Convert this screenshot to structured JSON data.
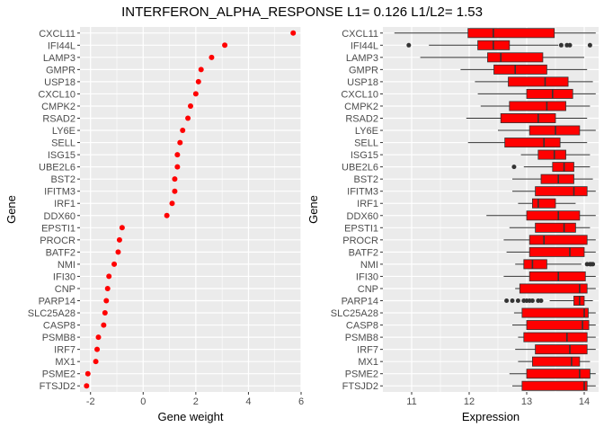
{
  "title": "INTERFERON_ALPHA_RESPONSE L1= 0.126 L1/L2= 1.53",
  "colors": {
    "panel": "#ebebeb",
    "grid": "#ffffff",
    "point": "#ff0000",
    "box": "#ff0000",
    "outlier": "#333333"
  },
  "chart_data": [
    {
      "type": "scatter",
      "xlabel": "Gene weight",
      "ylabel": "Gene",
      "xlim": [
        -2.4,
        6.0
      ],
      "xticks": [
        -2,
        0,
        2,
        4,
        6
      ],
      "genes": [
        "CXCL11",
        "IFI44L",
        "LAMP3",
        "GMPR",
        "USP18",
        "CXCL10",
        "CMPK2",
        "RSAD2",
        "LY6E",
        "SELL",
        "ISG15",
        "UBE2L6",
        "BST2",
        "IFITM3",
        "IRF1",
        "DDX60",
        "EPSTI1",
        "PROCR",
        "BATF2",
        "NMI",
        "IFI30",
        "CNP",
        "PARP14",
        "SLC25A28",
        "CASP8",
        "PSMB8",
        "IRF7",
        "MX1",
        "PSME2",
        "FTSJD2"
      ],
      "values": [
        5.7,
        3.1,
        2.6,
        2.2,
        2.1,
        2.0,
        1.8,
        1.7,
        1.5,
        1.4,
        1.3,
        1.3,
        1.2,
        1.2,
        1.1,
        0.9,
        -0.8,
        -0.9,
        -0.95,
        -1.1,
        -1.3,
        -1.35,
        -1.4,
        -1.45,
        -1.5,
        -1.7,
        -1.75,
        -1.8,
        -2.1,
        -2.15
      ]
    },
    {
      "type": "box",
      "xlabel": "Expression",
      "ylabel": "Gene",
      "xlim": [
        10.5,
        14.25
      ],
      "xticks": [
        11,
        12,
        13,
        14
      ],
      "genes": [
        "CXCL11",
        "IFI44L",
        "LAMP3",
        "GMPR",
        "USP18",
        "CXCL10",
        "CMPK2",
        "RSAD2",
        "LY6E",
        "SELL",
        "ISG15",
        "UBE2L6",
        "BST2",
        "IFITM3",
        "IRF1",
        "DDX60",
        "EPSTI1",
        "PROCR",
        "BATF2",
        "NMI",
        "IFI30",
        "CNP",
        "PARP14",
        "SLC25A28",
        "CASP8",
        "PSMB8",
        "IRF7",
        "MX1",
        "PSME2",
        "FTSJD2"
      ],
      "boxes": [
        {
          "wlo": 10.7,
          "q1": 11.98,
          "med": 12.42,
          "q3": 13.48,
          "whi": 14.2,
          "out": []
        },
        {
          "wlo": 11.3,
          "q1": 12.15,
          "med": 12.42,
          "q3": 12.7,
          "whi": 13.55,
          "out": [
            10.95,
            13.6,
            13.7,
            13.75,
            14.1
          ]
        },
        {
          "wlo": 11.15,
          "q1": 12.32,
          "med": 12.55,
          "q3": 13.28,
          "whi": 14.0,
          "out": []
        },
        {
          "wlo": 11.85,
          "q1": 12.43,
          "med": 12.8,
          "q3": 13.35,
          "whi": 14.05,
          "out": []
        },
        {
          "wlo": 12.1,
          "q1": 12.68,
          "med": 13.32,
          "q3": 13.72,
          "whi": 14.15,
          "out": []
        },
        {
          "wlo": 12.15,
          "q1": 13.0,
          "med": 13.45,
          "q3": 13.8,
          "whi": 14.2,
          "out": []
        },
        {
          "wlo": 12.2,
          "q1": 12.7,
          "med": 13.35,
          "q3": 13.68,
          "whi": 14.1,
          "out": []
        },
        {
          "wlo": 11.95,
          "q1": 12.55,
          "med": 13.2,
          "q3": 13.5,
          "whi": 14.05,
          "out": []
        },
        {
          "wlo": 12.5,
          "q1": 13.05,
          "med": 13.5,
          "q3": 13.92,
          "whi": 14.2,
          "out": []
        },
        {
          "wlo": 11.98,
          "q1": 12.62,
          "med": 13.3,
          "q3": 13.58,
          "whi": 14.05,
          "out": []
        },
        {
          "wlo": 12.9,
          "q1": 13.2,
          "med": 13.48,
          "q3": 13.68,
          "whi": 14.1,
          "out": []
        },
        {
          "wlo": 12.95,
          "q1": 13.45,
          "med": 13.65,
          "q3": 13.82,
          "whi": 14.1,
          "out": [
            12.78
          ]
        },
        {
          "wlo": 12.75,
          "q1": 13.25,
          "med": 13.55,
          "q3": 13.82,
          "whi": 14.15,
          "out": []
        },
        {
          "wlo": 12.75,
          "q1": 13.15,
          "med": 13.82,
          "q3": 14.05,
          "whi": 14.2,
          "out": []
        },
        {
          "wlo": 12.85,
          "q1": 13.1,
          "med": 13.2,
          "q3": 13.5,
          "whi": 13.85,
          "out": []
        },
        {
          "wlo": 12.3,
          "q1": 13.0,
          "med": 13.55,
          "q3": 13.92,
          "whi": 14.2,
          "out": []
        },
        {
          "wlo": 12.7,
          "q1": 13.15,
          "med": 13.65,
          "q3": 13.85,
          "whi": 14.1,
          "out": []
        },
        {
          "wlo": 12.6,
          "q1": 13.05,
          "med": 13.3,
          "q3": 14.05,
          "whi": 14.2,
          "out": []
        },
        {
          "wlo": 12.65,
          "q1": 13.05,
          "med": 13.75,
          "q3": 14.0,
          "whi": 14.2,
          "out": []
        },
        {
          "wlo": 12.8,
          "q1": 12.95,
          "med": 13.1,
          "q3": 13.35,
          "whi": 13.95,
          "out": [
            14.05,
            14.1,
            14.12,
            14.15
          ]
        },
        {
          "wlo": 12.6,
          "q1": 13.05,
          "med": 13.55,
          "q3": 14.02,
          "whi": 14.2,
          "out": []
        },
        {
          "wlo": 12.8,
          "q1": 12.88,
          "med": 13.92,
          "q3": 14.05,
          "whi": 14.2,
          "out": []
        },
        {
          "wlo": 13.4,
          "q1": 13.82,
          "med": 13.92,
          "q3": 14.0,
          "whi": 14.15,
          "out": [
            12.65,
            12.75,
            12.85,
            12.95,
            13.0,
            13.05,
            13.1,
            13.2,
            13.25
          ]
        },
        {
          "wlo": 12.78,
          "q1": 12.92,
          "med": 14.0,
          "q3": 14.07,
          "whi": 14.2,
          "out": []
        },
        {
          "wlo": 12.75,
          "q1": 13.0,
          "med": 13.97,
          "q3": 14.08,
          "whi": 14.2,
          "out": []
        },
        {
          "wlo": 12.85,
          "q1": 12.95,
          "med": 13.7,
          "q3": 14.05,
          "whi": 14.2,
          "out": []
        },
        {
          "wlo": 12.8,
          "q1": 13.15,
          "med": 13.75,
          "q3": 14.05,
          "whi": 14.2,
          "out": []
        },
        {
          "wlo": 12.85,
          "q1": 13.1,
          "med": 13.78,
          "q3": 13.92,
          "whi": 14.1,
          "out": []
        },
        {
          "wlo": 12.7,
          "q1": 13.0,
          "med": 13.92,
          "q3": 14.1,
          "whi": 14.2,
          "out": []
        },
        {
          "wlo": 12.75,
          "q1": 12.92,
          "med": 14.0,
          "q3": 14.05,
          "whi": 14.2,
          "out": []
        }
      ]
    }
  ]
}
